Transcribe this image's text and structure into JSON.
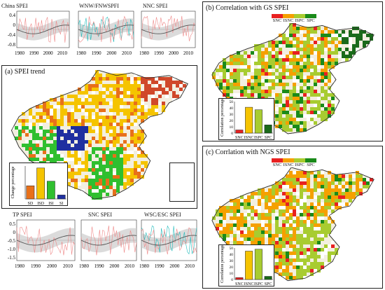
{
  "timeseries_top": [
    {
      "title": "China SPEI",
      "yticks": [
        "0.4",
        "0",
        "-0.4",
        "-0.8"
      ],
      "xticks": [
        "1980",
        "1990",
        "2000",
        "2010"
      ],
      "colors": [
        "#e88",
        "#555"
      ]
    },
    {
      "title": "WNW/FNWSPFI",
      "yticks": [],
      "xticks": [
        "1980",
        "1990",
        "2000",
        "2010"
      ],
      "colors": [
        "#2bb",
        "#e88",
        "#555"
      ]
    },
    {
      "title": "NNC SPEI",
      "yticks": [],
      "xticks": [
        "1980",
        "1990",
        "2000",
        "2010"
      ],
      "colors": [
        "#e88",
        "#555"
      ]
    }
  ],
  "timeseries_bottom": [
    {
      "title": "TP SPEI",
      "yticks": [
        "0.5",
        "0",
        "-0.5",
        "-1.0",
        "-1.5"
      ],
      "xticks": [
        "1980",
        "1990",
        "2000",
        "2010"
      ],
      "colors": [
        "#e88",
        "#555"
      ]
    },
    {
      "title": "SNC SPEI",
      "yticks": [],
      "xticks": [
        "1980",
        "1990",
        "2000",
        "2010"
      ],
      "colors": [
        "#e88",
        "#555"
      ]
    },
    {
      "title": "WSC/ESC SPEI",
      "yticks": [],
      "xticks": [
        "1980",
        "1990",
        "2000",
        "2010"
      ],
      "colors": [
        "#2bb",
        "#e88",
        "#555"
      ]
    }
  ],
  "panel_a": {
    "title": "(a) SPEI trend",
    "chart_data": {
      "type": "bar",
      "ylabel": "Change percentage",
      "categories": [
        "SD",
        "ISD",
        "ISI",
        "SI"
      ],
      "values": [
        20,
        47,
        27,
        6
      ],
      "colors": [
        "#e8701a",
        "#f5c400",
        "#2fbf2f",
        "#1f2fa0"
      ],
      "ylim": [
        0,
        50
      ]
    }
  },
  "panel_b": {
    "title": "(b) Correlation with GS SPEI",
    "legend": [
      {
        "label": "SNC",
        "color": "#e82020"
      },
      {
        "label": "ISNC",
        "color": "#f5a000"
      },
      {
        "label": "ISPC",
        "color": "#a8cc30"
      },
      {
        "label": "SPC",
        "color": "#1a8a1a"
      }
    ],
    "chart_data": {
      "type": "bar",
      "ylabel": "Correlation percentage",
      "categories": [
        "SNC",
        "ISNC",
        "ISPC",
        "SPC"
      ],
      "values": [
        5,
        41,
        37,
        13
      ],
      "colors": [
        "#e82020",
        "#f5c400",
        "#a8cc30",
        "#1a6a1a"
      ],
      "ylim": [
        0,
        50
      ],
      "yticks": [
        "0",
        "10",
        "20",
        "30",
        "40",
        "50"
      ]
    }
  },
  "panel_c": {
    "title": "(c) Corrlation with NGS SPEI",
    "legend": [
      {
        "label": "SNC",
        "color": "#e82020"
      },
      {
        "label": "ISNC",
        "color": "#f5a000"
      },
      {
        "label": "ISPC",
        "color": "#a8cc30"
      },
      {
        "label": "SPC",
        "color": "#1a8a1a"
      }
    ],
    "chart_data": {
      "type": "bar",
      "ylabel": "Correlation percentage",
      "categories": [
        "SNC",
        "ISNC",
        "ISPC",
        "SPC"
      ],
      "values": [
        3,
        45,
        48,
        5
      ],
      "colors": [
        "#e82020",
        "#f5c400",
        "#a8cc30",
        "#1a6a1a"
      ],
      "ylim": [
        0,
        50
      ],
      "yticks": [
        "0",
        "10",
        "20",
        "30",
        "40",
        "50"
      ]
    }
  }
}
